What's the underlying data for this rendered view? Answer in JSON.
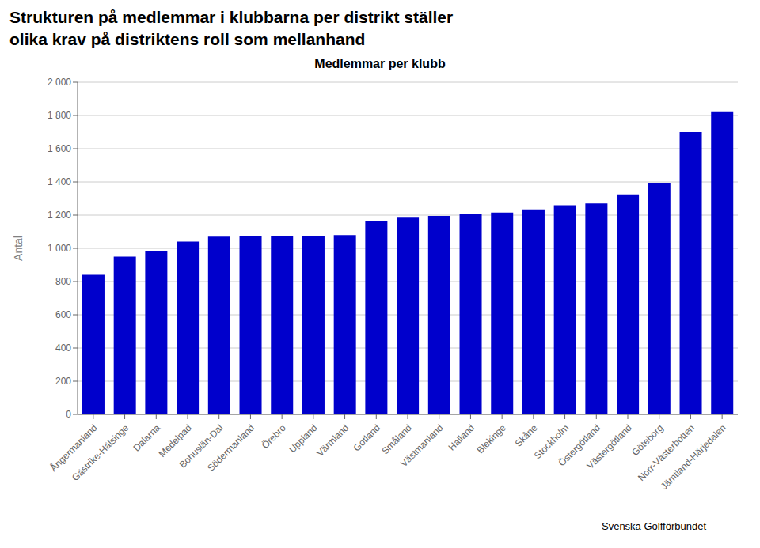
{
  "chart_data": {
    "type": "bar",
    "title": "Strukturen på medlemmar i klubbarna per distrikt ställer\nolika krav på distriktens roll som mellanhand",
    "subtitle": "Medlemmar per klubb",
    "ylabel": "Antal",
    "categories": [
      "Ångermanland",
      "Gästrike-Hälsinge",
      "Dalarna",
      "Medelpad",
      "Bohuslän-Dal",
      "Södermanland",
      "Örebro",
      "Uppland",
      "Värmland",
      "Gotland",
      "Småland",
      "Västmanland",
      "Halland",
      "Blekinge",
      "Skåne",
      "Stockholm",
      "Östergötland",
      "Västergötland",
      "Göteborg",
      "Norr-Västerbotten",
      "Jämtland-Härjedalen"
    ],
    "values": [
      840,
      950,
      985,
      1040,
      1070,
      1075,
      1075,
      1075,
      1080,
      1165,
      1185,
      1195,
      1205,
      1215,
      1235,
      1260,
      1270,
      1325,
      1390,
      1700,
      1820
    ],
    "color": "#0000CC",
    "ylim": [
      0,
      2000
    ],
    "yticks": [
      0,
      200,
      400,
      600,
      800,
      {
        "value": 1000,
        "label": "1 000"
      },
      {
        "value": 1200,
        "label": "1 200"
      },
      {
        "value": 1400,
        "label": "1 400"
      },
      {
        "value": 1600,
        "label": "1 600"
      },
      {
        "value": 1800,
        "label": "1 800"
      },
      {
        "value": 2000,
        "label": "2 000"
      }
    ],
    "grid": true,
    "annotations": [
      "Svenska Golfförbundet"
    ]
  }
}
